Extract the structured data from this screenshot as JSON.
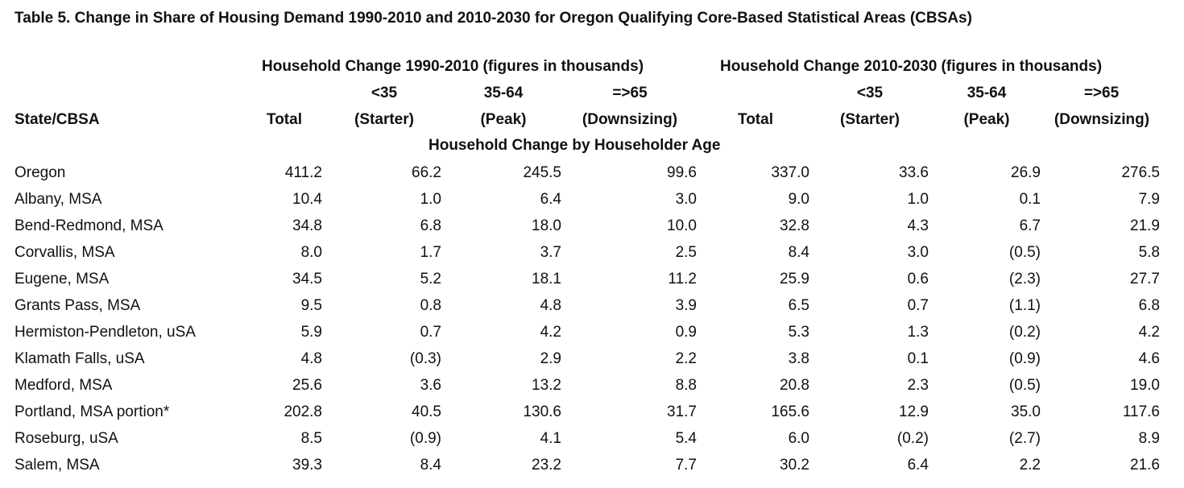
{
  "title": "Table 5. Change in Share of Housing Demand 1990-2010 and 2010-2030 for Oregon Qualifying Core-Based Statistical Areas (CBSAs)",
  "header": {
    "group1": "Household Change 1990-2010 (figures in thousands)",
    "group2": "Household Change 2010-2030 (figures in thousands)",
    "state_col": "State/CBSA",
    "total": "Total",
    "starter_top": "<35",
    "starter_bottom": "(Starter)",
    "peak_top": "35-64",
    "peak_bottom": "(Peak)",
    "down_top": "=>65",
    "down_bottom": "(Downsizing)",
    "band": "Household Change by Householder Age"
  },
  "rows": [
    {
      "name": "Oregon",
      "v": [
        "411.2",
        "66.2",
        "245.5",
        "99.6",
        "337.0",
        "33.6",
        "26.9",
        "276.5"
      ]
    },
    {
      "name": "Albany, MSA",
      "v": [
        "10.4",
        "1.0",
        "6.4",
        "3.0",
        "9.0",
        "1.0",
        "0.1",
        "7.9"
      ]
    },
    {
      "name": "Bend-Redmond, MSA",
      "v": [
        "34.8",
        "6.8",
        "18.0",
        "10.0",
        "32.8",
        "4.3",
        "6.7",
        "21.9"
      ]
    },
    {
      "name": "Corvallis, MSA",
      "v": [
        "8.0",
        "1.7",
        "3.7",
        "2.5",
        "8.4",
        "3.0",
        "(0.5)",
        "5.8"
      ]
    },
    {
      "name": "Eugene, MSA",
      "v": [
        "34.5",
        "5.2",
        "18.1",
        "11.2",
        "25.9",
        "0.6",
        "(2.3)",
        "27.7"
      ]
    },
    {
      "name": "Grants Pass, MSA",
      "v": [
        "9.5",
        "0.8",
        "4.8",
        "3.9",
        "6.5",
        "0.7",
        "(1.1)",
        "6.8"
      ]
    },
    {
      "name": "Hermiston-Pendleton, uSA",
      "v": [
        "5.9",
        "0.7",
        "4.2",
        "0.9",
        "5.3",
        "1.3",
        "(0.2)",
        "4.2"
      ]
    },
    {
      "name": "Klamath Falls, uSA",
      "v": [
        "4.8",
        "(0.3)",
        "2.9",
        "2.2",
        "3.8",
        "0.1",
        "(0.9)",
        "4.6"
      ]
    },
    {
      "name": "Medford, MSA",
      "v": [
        "25.6",
        "3.6",
        "13.2",
        "8.8",
        "20.8",
        "2.3",
        "(0.5)",
        "19.0"
      ]
    },
    {
      "name": "Portland, MSA portion*",
      "v": [
        "202.8",
        "40.5",
        "130.6",
        "31.7",
        "165.6",
        "12.9",
        "35.0",
        "117.6"
      ]
    },
    {
      "name": "Roseburg, uSA",
      "v": [
        "8.5",
        "(0.9)",
        "4.1",
        "5.4",
        "6.0",
        "(0.2)",
        "(2.7)",
        "8.9"
      ]
    },
    {
      "name": "Salem, MSA",
      "v": [
        "39.3",
        "8.4",
        "23.2",
        "7.7",
        "30.2",
        "6.4",
        "2.2",
        "21.6"
      ]
    }
  ]
}
